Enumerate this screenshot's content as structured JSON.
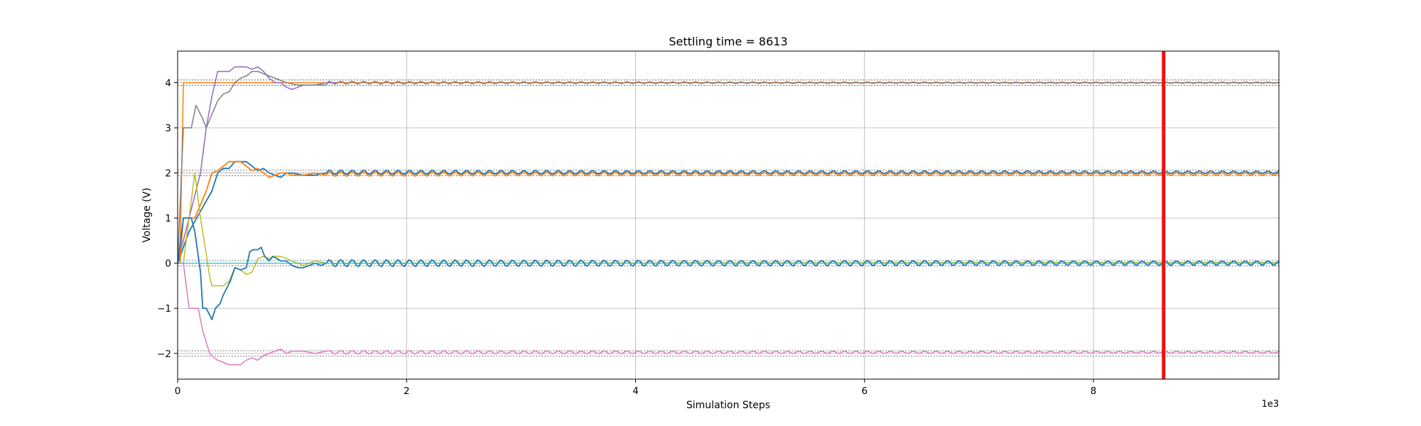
{
  "chart_data": {
    "type": "line",
    "title": "Settling time = 8613",
    "xlabel": "Simulation Steps",
    "ylabel": "Voltage (V)",
    "x_multiplier_label": "1e3",
    "xlim": [
      0,
      9.62
    ],
    "ylim": [
      -2.57,
      4.7
    ],
    "x_ticks": [
      0,
      2,
      4,
      6,
      8
    ],
    "x_tick_labels": [
      "0",
      "2",
      "4",
      "6",
      "8"
    ],
    "y_ticks": [
      -2,
      -1,
      0,
      1,
      2,
      3,
      4
    ],
    "y_tick_labels": [
      "−2",
      "−1",
      "0",
      "1",
      "2",
      "3",
      "4"
    ],
    "grid": true,
    "legend": "none",
    "settling_time_marker": {
      "x": 8.613,
      "color": "#ee1111"
    },
    "tolerance_bands": [
      {
        "center": 4,
        "low": 3.94,
        "high": 4.06
      },
      {
        "center": 2,
        "low": 1.94,
        "high": 2.06
      },
      {
        "center": 0,
        "low": -0.06,
        "high": 0.06
      },
      {
        "center": -2,
        "low": -2.06,
        "high": -1.94
      }
    ],
    "series": [
      {
        "color": "#ff7f0e",
        "width": 1.5,
        "points": [
          [
            0,
            0
          ],
          [
            0.02,
            0
          ],
          [
            0.05,
            4
          ],
          [
            9.62,
            4
          ]
        ],
        "settle": {
          "target": 4,
          "t0": 0.05,
          "amp": 0,
          "decay": 1,
          "period": 0.1
        }
      },
      {
        "color": "#9467bd",
        "width": 1.5,
        "points": [
          [
            0,
            0
          ],
          [
            0.1,
            1
          ],
          [
            0.2,
            2
          ],
          [
            0.25,
            3
          ],
          [
            0.3,
            3.7
          ],
          [
            0.35,
            4.25
          ],
          [
            0.45,
            4.25
          ],
          [
            0.5,
            4.35
          ],
          [
            0.6,
            4.35
          ],
          [
            0.65,
            4.3
          ],
          [
            0.7,
            4.35
          ],
          [
            0.75,
            4.25
          ],
          [
            0.8,
            4.1
          ],
          [
            0.85,
            4.0
          ],
          [
            0.9,
            4.0
          ],
          [
            0.95,
            3.9
          ],
          [
            1.0,
            3.85
          ],
          [
            1.1,
            3.95
          ],
          [
            1.2,
            3.95
          ],
          [
            1.3,
            4.0
          ],
          [
            1.4,
            4.0
          ]
        ],
        "settle": {
          "target": 4,
          "t0": 1.4,
          "amp": 0.03,
          "decay": 3,
          "period": 0.1
        }
      },
      {
        "color": "#7f7f7f",
        "width": 1.5,
        "points": [
          [
            0,
            0
          ],
          [
            0.05,
            3
          ],
          [
            0.12,
            3
          ],
          [
            0.16,
            3.5
          ],
          [
            0.22,
            3.2
          ],
          [
            0.25,
            3.0
          ],
          [
            0.3,
            3.3
          ],
          [
            0.35,
            3.6
          ],
          [
            0.4,
            3.75
          ],
          [
            0.45,
            3.8
          ],
          [
            0.5,
            4.0
          ],
          [
            0.55,
            4.1
          ],
          [
            0.6,
            4.15
          ],
          [
            0.65,
            4.25
          ],
          [
            0.7,
            4.25
          ],
          [
            0.75,
            4.2
          ],
          [
            0.8,
            4.15
          ],
          [
            0.85,
            4.1
          ],
          [
            0.9,
            4.05
          ],
          [
            0.95,
            4.0
          ],
          [
            1.05,
            3.95
          ],
          [
            1.2,
            3.95
          ],
          [
            1.3,
            3.95
          ]
        ],
        "settle": {
          "target": 4,
          "t0": 1.3,
          "amp": 0.03,
          "decay": 3,
          "period": 0.1
        }
      },
      {
        "color": "#1f77b4",
        "width": 1.8,
        "points": [
          [
            0,
            0
          ],
          [
            0.1,
            0.7
          ],
          [
            0.2,
            1.15
          ],
          [
            0.3,
            1.6
          ],
          [
            0.35,
            2.0
          ],
          [
            0.4,
            2.1
          ],
          [
            0.45,
            2.1
          ],
          [
            0.5,
            2.25
          ],
          [
            0.6,
            2.25
          ],
          [
            0.65,
            2.15
          ],
          [
            0.7,
            2.05
          ],
          [
            0.75,
            2.1
          ],
          [
            0.8,
            2.0
          ],
          [
            0.85,
            1.95
          ],
          [
            0.9,
            1.9
          ],
          [
            0.95,
            2.0
          ],
          [
            1.0,
            2.0
          ],
          [
            1.1,
            1.95
          ],
          [
            1.2,
            1.95
          ],
          [
            1.3,
            2.0
          ]
        ],
        "settle": {
          "target": 2.015,
          "t0": 1.3,
          "amp": 0.05,
          "decay": 6,
          "period": 0.1
        }
      },
      {
        "color": "#ff7f0e",
        "width": 1.8,
        "points": [
          [
            0,
            0
          ],
          [
            0.02,
            0
          ],
          [
            0.05,
            1.0
          ],
          [
            0.15,
            1.0
          ],
          [
            0.2,
            1.3
          ],
          [
            0.25,
            1.6
          ],
          [
            0.3,
            2.0
          ],
          [
            0.35,
            2.05
          ],
          [
            0.4,
            2.15
          ],
          [
            0.45,
            2.25
          ],
          [
            0.55,
            2.25
          ],
          [
            0.6,
            2.15
          ],
          [
            0.65,
            2.05
          ],
          [
            0.7,
            2.1
          ],
          [
            0.75,
            2.0
          ],
          [
            0.8,
            1.9
          ],
          [
            0.85,
            1.95
          ],
          [
            0.9,
            2.0
          ],
          [
            0.95,
            2.0
          ],
          [
            1.0,
            1.95
          ],
          [
            1.1,
            1.95
          ],
          [
            1.2,
            2.0
          ],
          [
            1.3,
            1.95
          ]
        ],
        "settle": {
          "target": 1.975,
          "t0": 1.3,
          "amp": 0.05,
          "decay": 6,
          "period": 0.1
        }
      },
      {
        "color": "#bcbd22",
        "width": 1.5,
        "points": [
          [
            0,
            0
          ],
          [
            0.05,
            0
          ],
          [
            0.1,
            1.0
          ],
          [
            0.15,
            2.0
          ],
          [
            0.2,
            1.0
          ],
          [
            0.25,
            0.2
          ],
          [
            0.28,
            -0.3
          ],
          [
            0.3,
            -0.5
          ],
          [
            0.4,
            -0.5
          ],
          [
            0.45,
            -0.4
          ],
          [
            0.5,
            -0.1
          ],
          [
            0.55,
            -0.15
          ],
          [
            0.6,
            -0.25
          ],
          [
            0.65,
            -0.2
          ],
          [
            0.7,
            0.1
          ],
          [
            0.75,
            0.15
          ],
          [
            0.8,
            0.1
          ],
          [
            0.85,
            0.15
          ],
          [
            0.9,
            0.15
          ],
          [
            0.95,
            0.1
          ],
          [
            1.0,
            0.05
          ],
          [
            1.05,
            0.0
          ],
          [
            1.1,
            -0.05
          ],
          [
            1.2,
            0.05
          ],
          [
            1.3,
            0.0
          ]
        ],
        "settle": {
          "target": 0.025,
          "t0": 1.3,
          "amp": 0.04,
          "decay": 4,
          "period": 0.1
        }
      },
      {
        "color": "#e377c2",
        "width": 1.5,
        "points": [
          [
            0,
            0
          ],
          [
            0.05,
            0
          ],
          [
            0.1,
            -1.0
          ],
          [
            0.18,
            -1.0
          ],
          [
            0.22,
            -1.5
          ],
          [
            0.28,
            -2.0
          ],
          [
            0.32,
            -2.1
          ],
          [
            0.35,
            -2.15
          ],
          [
            0.4,
            -2.2
          ],
          [
            0.45,
            -2.25
          ],
          [
            0.55,
            -2.25
          ],
          [
            0.6,
            -2.15
          ],
          [
            0.65,
            -2.1
          ],
          [
            0.7,
            -2.15
          ],
          [
            0.75,
            -2.05
          ],
          [
            0.8,
            -2.0
          ],
          [
            0.85,
            -1.95
          ],
          [
            0.9,
            -1.9
          ],
          [
            0.95,
            -2.0
          ],
          [
            1.0,
            -1.95
          ],
          [
            1.1,
            -1.95
          ],
          [
            1.2,
            -2.0
          ],
          [
            1.3,
            -1.95
          ]
        ],
        "settle": {
          "target": -1.975,
          "t0": 1.3,
          "amp": 0.04,
          "decay": 6,
          "period": 0.1
        }
      },
      {
        "color": "#1f77b4",
        "width": 1.8,
        "points": [
          [
            0,
            0
          ],
          [
            0.05,
            1.0
          ],
          [
            0.12,
            1.0
          ],
          [
            0.15,
            0.7
          ],
          [
            0.2,
            -0.2
          ],
          [
            0.22,
            -1.0
          ],
          [
            0.25,
            -1.0
          ],
          [
            0.3,
            -1.25
          ],
          [
            0.33,
            -1.0
          ],
          [
            0.37,
            -0.9
          ],
          [
            0.4,
            -0.7
          ],
          [
            0.42,
            -0.6
          ],
          [
            0.46,
            -0.4
          ],
          [
            0.5,
            -0.1
          ],
          [
            0.55,
            -0.15
          ],
          [
            0.6,
            -0.1
          ],
          [
            0.63,
            0.25
          ],
          [
            0.66,
            0.3
          ],
          [
            0.7,
            0.3
          ],
          [
            0.73,
            0.35
          ],
          [
            0.76,
            0.15
          ],
          [
            0.8,
            0.05
          ],
          [
            0.83,
            0.15
          ],
          [
            0.87,
            0.1
          ],
          [
            0.9,
            0.05
          ],
          [
            0.95,
            0.05
          ],
          [
            1.0,
            -0.05
          ],
          [
            1.05,
            -0.1
          ],
          [
            1.1,
            -0.1
          ],
          [
            1.15,
            -0.05
          ],
          [
            1.2,
            0.0
          ],
          [
            1.25,
            -0.05
          ],
          [
            1.3,
            0.0
          ]
        ],
        "settle": {
          "target": 0.0,
          "t0": 1.3,
          "amp": 0.08,
          "decay": 9,
          "period": 0.1
        }
      },
      {
        "color": "#17becf",
        "width": 1.2,
        "points": [
          [
            0,
            0
          ],
          [
            9.62,
            0
          ]
        ],
        "settle": {
          "target": 0,
          "t0": 9.62,
          "amp": 0,
          "decay": 1,
          "period": 0.1
        }
      }
    ]
  }
}
